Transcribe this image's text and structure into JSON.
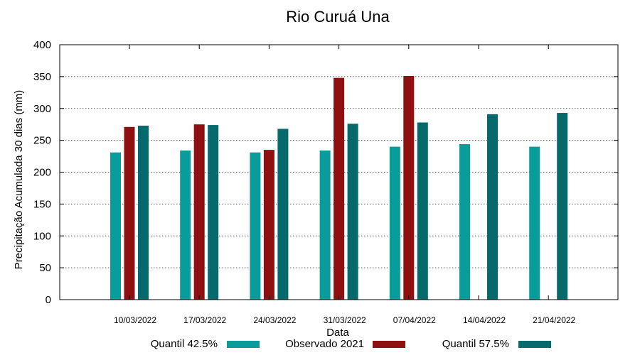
{
  "chart_data": {
    "type": "bar",
    "title": "Rio Curuá Una",
    "xlabel": "Data",
    "ylabel": "Precipitação Acumulada 30 dias (mm)",
    "ylim": [
      0,
      400
    ],
    "yticks": [
      0,
      50,
      100,
      150,
      200,
      250,
      300,
      350,
      400
    ],
    "grid": true,
    "legend_position": "bottom",
    "categories": [
      "10/03/2022",
      "17/03/2022",
      "24/03/2022",
      "31/03/2022",
      "07/04/2022",
      "14/04/2022",
      "21/04/2022"
    ],
    "series": [
      {
        "name": "Quantil 42.5%",
        "color": "#0a9c9a",
        "values": [
          231,
          234,
          231,
          234,
          240,
          244,
          240
        ]
      },
      {
        "name": "Observado 2021",
        "color": "#8e1010",
        "values": [
          271,
          275,
          235,
          348,
          351,
          null,
          null
        ]
      },
      {
        "name": "Quantil 57.5%",
        "color": "#06696b",
        "values": [
          273,
          274,
          268,
          276,
          278,
          291,
          293
        ]
      }
    ]
  }
}
